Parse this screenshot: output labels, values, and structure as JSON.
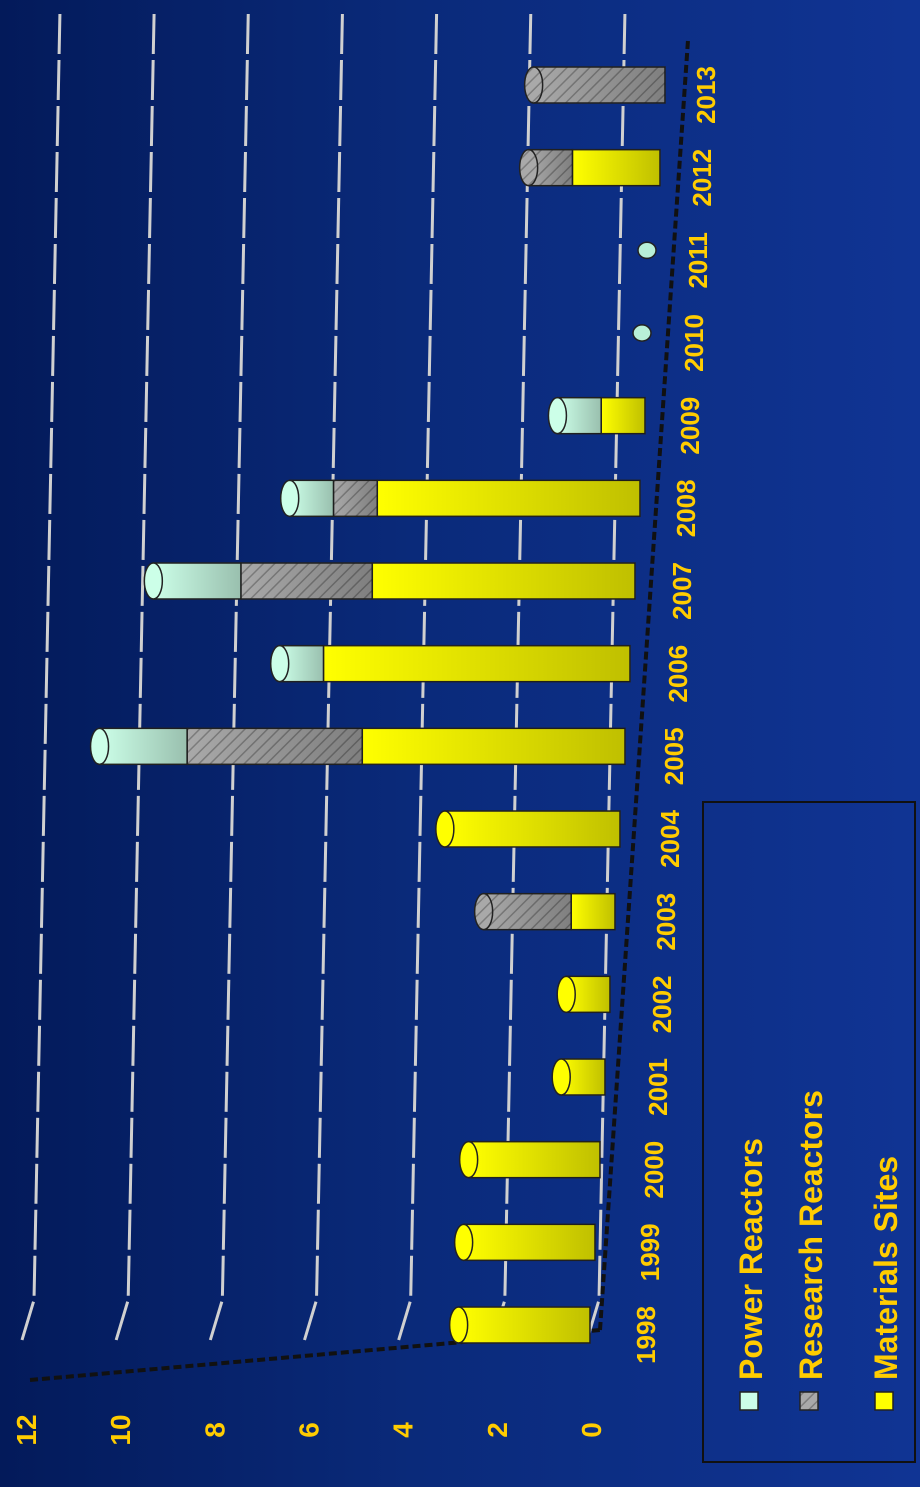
{
  "chart_data": {
    "type": "bar",
    "stacked": true,
    "three_d": true,
    "orientation": "rotated-90-clockwise",
    "categories": [
      "1998",
      "1999",
      "2000",
      "2001",
      "2002",
      "2003",
      "2004",
      "2005",
      "2006",
      "2007",
      "2008",
      "2009",
      "2010",
      "2011",
      "2012",
      "2013"
    ],
    "series": [
      {
        "name": "Materials Sites",
        "color": "#ffff00",
        "values": [
          3,
          3,
          3,
          1,
          1,
          1,
          4,
          6,
          7,
          6,
          6,
          1,
          0,
          0,
          2,
          0
        ]
      },
      {
        "name": "Research Reactors",
        "color": "#a8a8a8",
        "values": [
          0,
          0,
          0,
          0,
          0,
          2,
          0,
          4,
          0,
          3,
          1,
          0,
          0,
          0,
          1,
          3
        ]
      },
      {
        "name": "Power Reactors",
        "color": "#ccffe8",
        "values": [
          0,
          0,
          0,
          0,
          0,
          0,
          0,
          2,
          1,
          2,
          1,
          1,
          0,
          0,
          0,
          0
        ]
      }
    ],
    "ylim": [
      0,
      12
    ],
    "yticks": [
      "0",
      "2",
      "4",
      "6",
      "8",
      "10",
      "12"
    ],
    "grid": true,
    "legend": "bottom-right",
    "colors": {
      "background": "#0a2a7a",
      "label": "#ffcc00",
      "legend_text": "#ffcc00"
    }
  }
}
